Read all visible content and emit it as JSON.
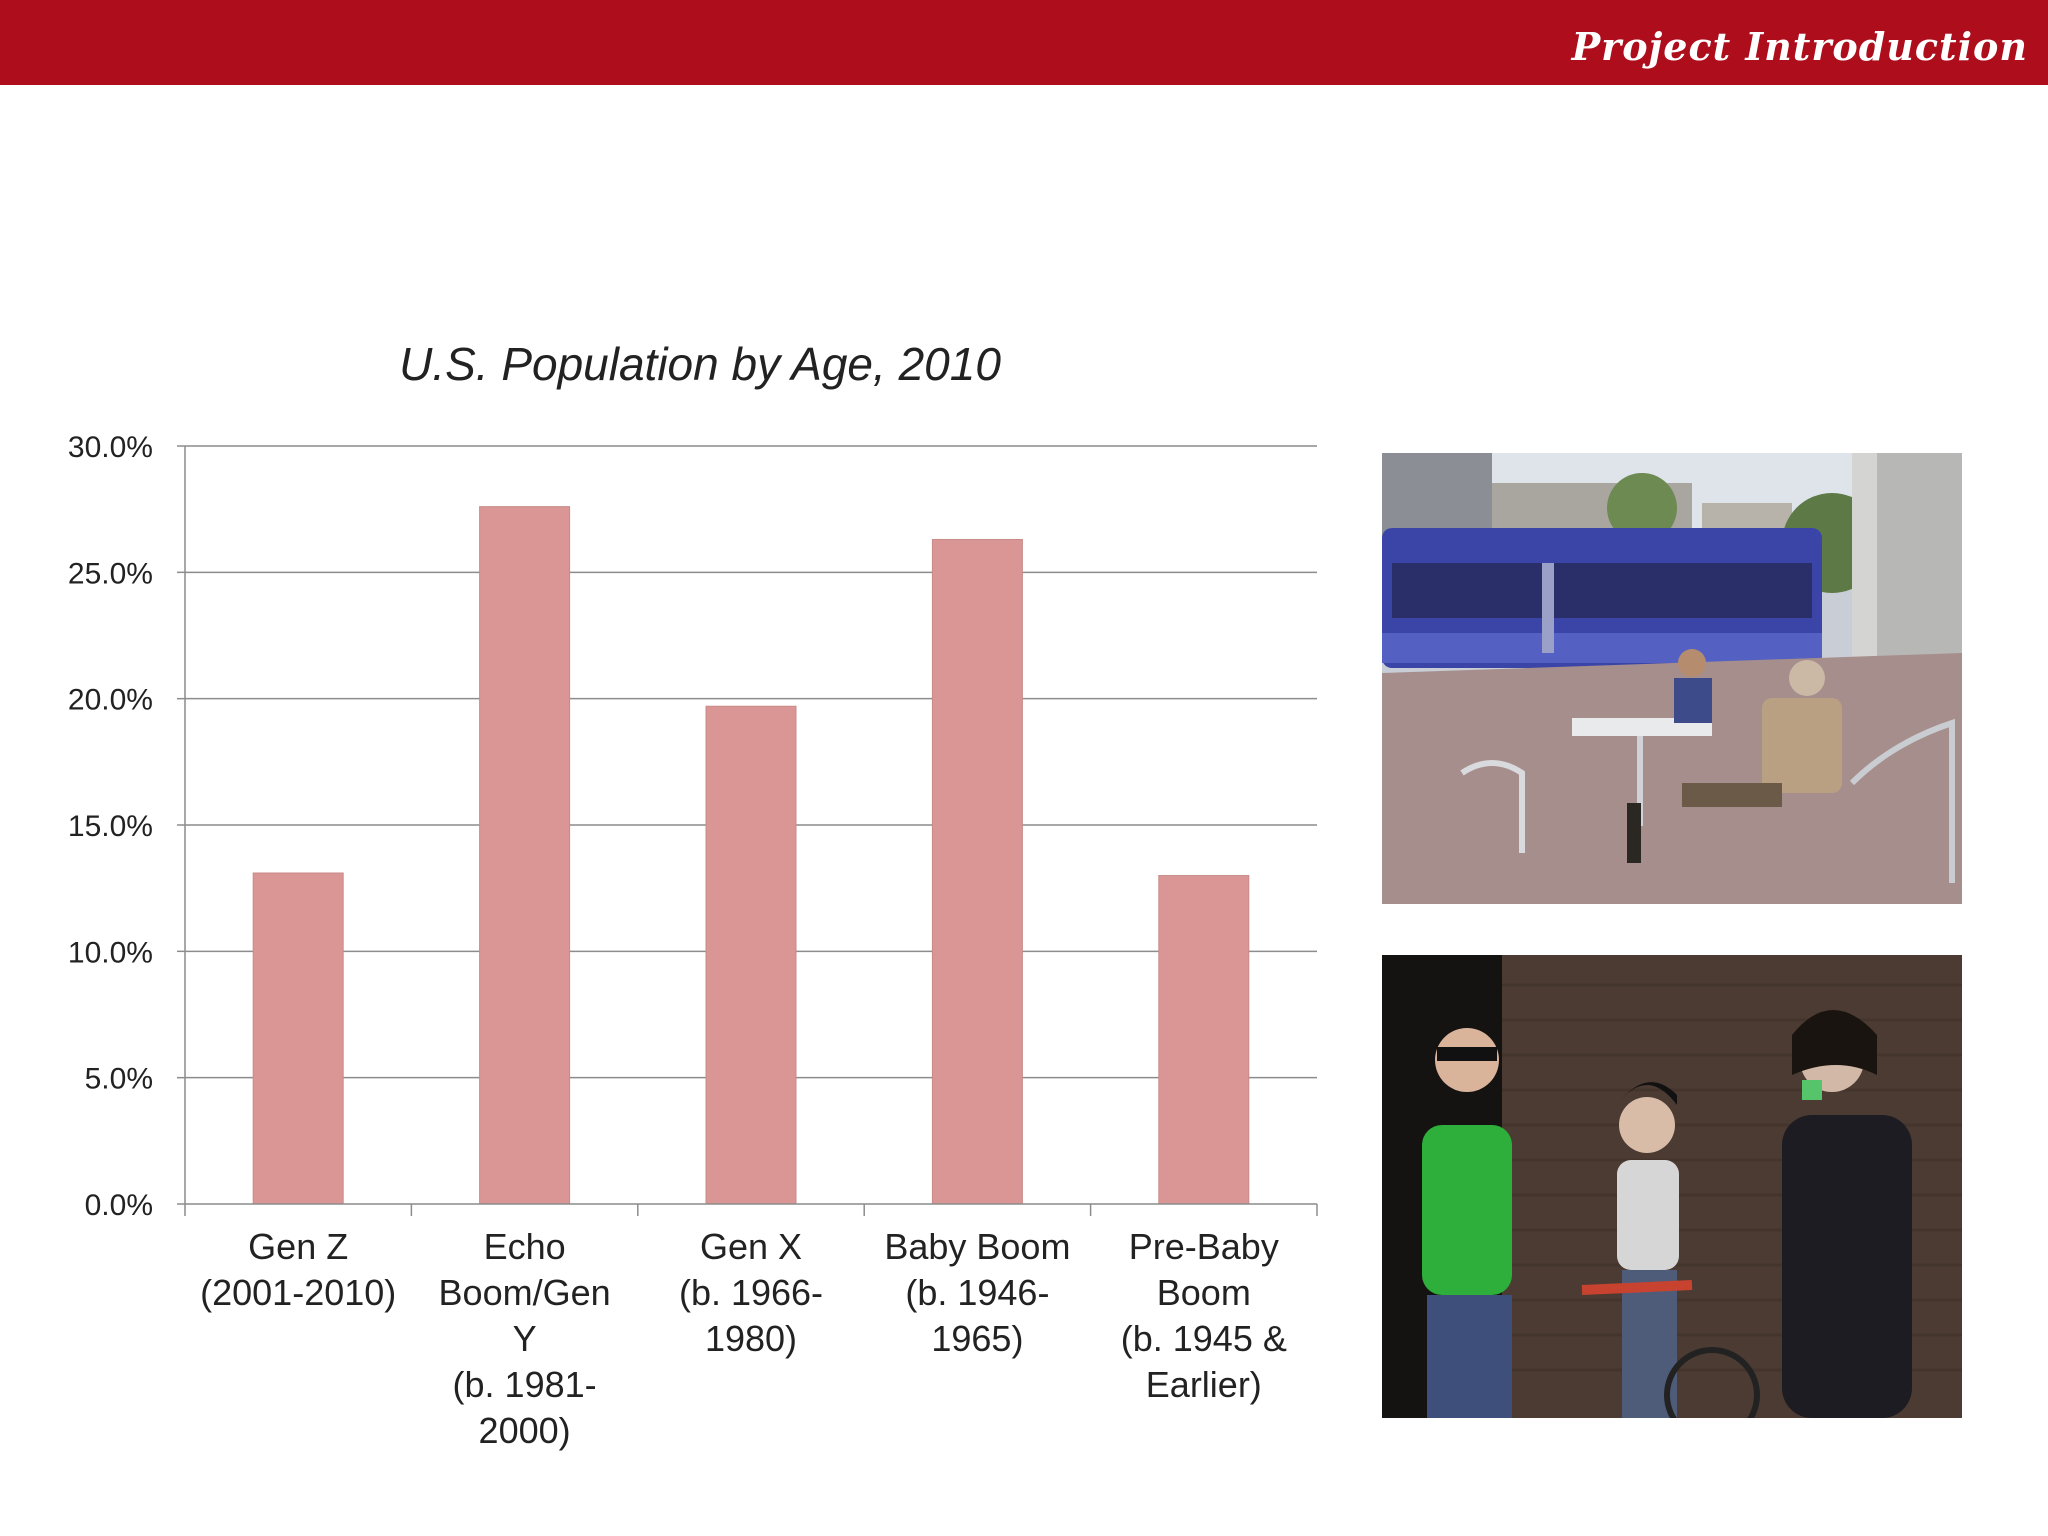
{
  "header": {
    "title": "Project Introduction",
    "bar_color": "#ae0e1c"
  },
  "chart_data": {
    "type": "bar",
    "title": "U.S. Population by Age, 2010",
    "categories": [
      [
        "Gen Z",
        "(2001-2010)"
      ],
      [
        "Echo",
        "Boom/Gen",
        "Y",
        "(b. 1981-",
        "2000)"
      ],
      [
        "Gen X",
        "(b. 1966-",
        "1980)"
      ],
      [
        "Baby Boom",
        "(b. 1946-",
        "1965)"
      ],
      [
        "Pre-Baby",
        "Boom",
        "(b. 1945 &",
        "Earlier)"
      ]
    ],
    "values": [
      13.1,
      27.6,
      19.7,
      26.3,
      13.0
    ],
    "ylim": [
      0,
      30
    ],
    "yticks": [
      "0.0%",
      "5.0%",
      "10.0%",
      "15.0%",
      "20.0%",
      "25.0%",
      "30.0%"
    ],
    "bar_color": "#d99694",
    "grid": true,
    "legend": "none"
  },
  "photos": [
    {
      "name": "tram-cafe-photo",
      "subject": "people-at-outdoor-cafe-by-blue-tram"
    },
    {
      "name": "youth-brick-wall-photo",
      "subject": "three-young-people-by-brick-wall"
    }
  ]
}
